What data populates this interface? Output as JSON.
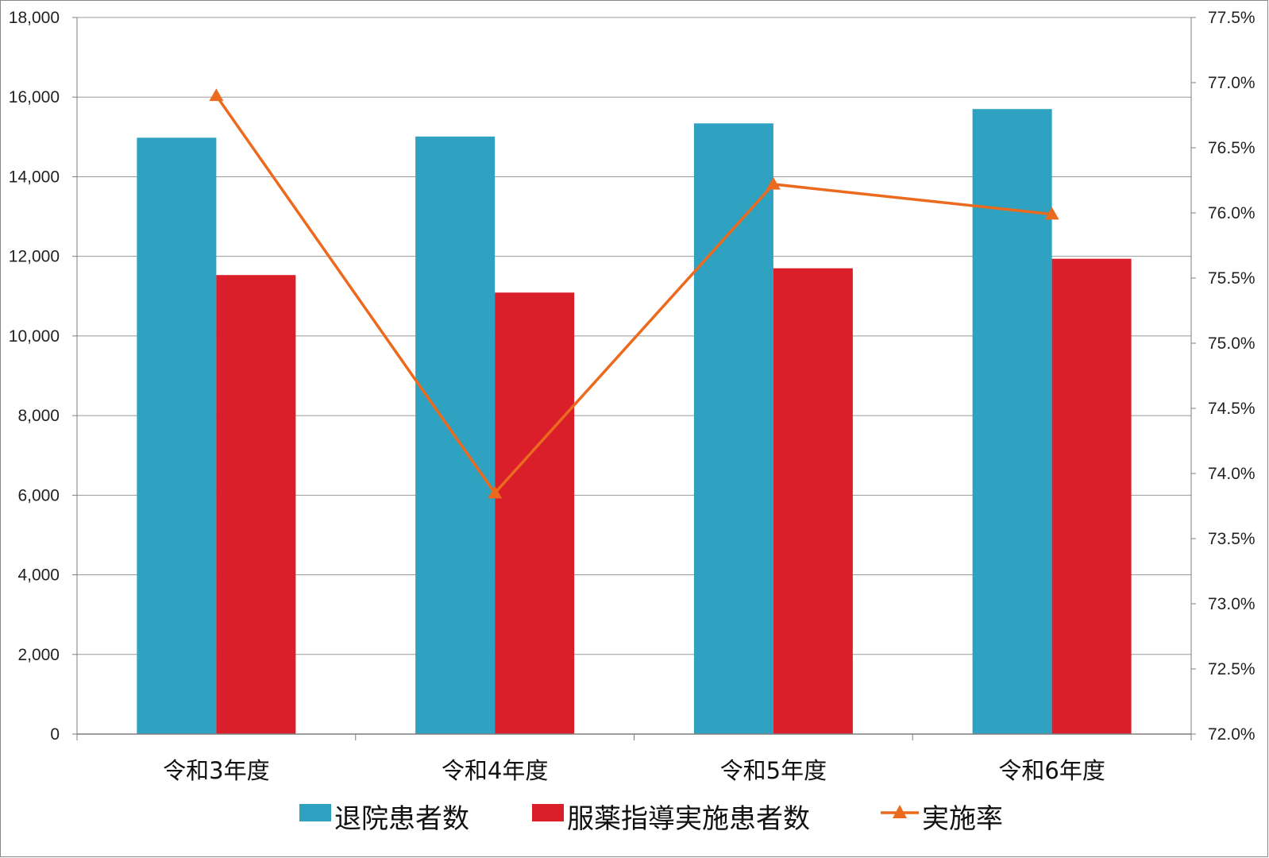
{
  "chart_data": {
    "type": "bar",
    "categories": [
      "令和3年度",
      "令和4年度",
      "令和5年度",
      "令和6年度"
    ],
    "series": [
      {
        "name": "退院患者数",
        "type": "bar",
        "axis": "left",
        "color": "#2EA2C0",
        "values": [
          14980,
          15010,
          15340,
          15700
        ]
      },
      {
        "name": "服薬指導実施患者数",
        "type": "bar",
        "axis": "left",
        "color": "#DA1F2A",
        "values": [
          11530,
          11090,
          11700,
          11940
        ]
      },
      {
        "name": "実施率",
        "type": "line",
        "marker": "triangle",
        "axis": "right",
        "color": "#EB6A1E",
        "values": [
          76.9,
          73.85,
          76.22,
          75.99
        ]
      }
    ],
    "y_left": {
      "min": 0,
      "max": 18000,
      "step": 2000,
      "ticks": [
        "0",
        "2,000",
        "4,000",
        "6,000",
        "8,000",
        "10,000",
        "12,000",
        "14,000",
        "16,000",
        "18,000"
      ]
    },
    "y_right": {
      "min": 72.0,
      "max": 77.5,
      "step": 0.5,
      "ticks": [
        "72.0%",
        "72.5%",
        "73.0%",
        "73.5%",
        "74.0%",
        "74.5%",
        "75.0%",
        "75.5%",
        "76.0%",
        "76.5%",
        "77.0%",
        "77.5%"
      ]
    },
    "title": "",
    "xlabel": "",
    "ylabel": "",
    "grid": true,
    "legend_position": "bottom"
  },
  "colors": {
    "gridline": "#999999",
    "axis": "#7F7F7F",
    "frame": "#888888"
  }
}
